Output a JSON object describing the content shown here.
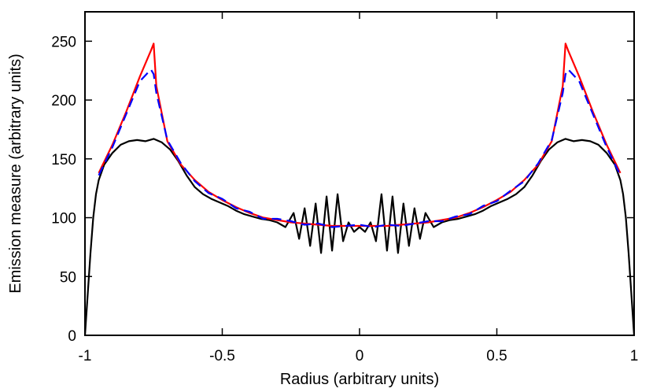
{
  "chart_data": {
    "type": "line",
    "title": "",
    "xlabel": "Radius (arbitrary units)",
    "ylabel": "Emission measure (arbitrary units)",
    "xlim": [
      -1.0,
      1.0
    ],
    "ylim": [
      0,
      275
    ],
    "xticks": [
      -1,
      -0.5,
      0,
      0.5,
      1
    ],
    "xtick_labels": [
      "-1",
      "-0.5",
      "0",
      "0.5",
      "1"
    ],
    "yticks": [
      0,
      50,
      100,
      150,
      200,
      250
    ],
    "ytick_labels": [
      "0",
      "50",
      "100",
      "150",
      "200",
      "250"
    ],
    "grid": false,
    "legend": "none",
    "series": [
      {
        "color": "#ff0000",
        "style": "solid",
        "x": [
          -0.95,
          -0.9,
          -0.85,
          -0.8,
          -0.76,
          -0.75,
          -0.74,
          -0.7,
          -0.65,
          -0.6,
          -0.55,
          -0.5,
          -0.45,
          -0.4,
          -0.35,
          -0.3,
          -0.25,
          -0.2,
          -0.15,
          -0.1,
          -0.05,
          0,
          0.05,
          0.1,
          0.15,
          0.2,
          0.25,
          0.3,
          0.35,
          0.4,
          0.45,
          0.5,
          0.55,
          0.6,
          0.65,
          0.7,
          0.74,
          0.75,
          0.76,
          0.8,
          0.85,
          0.9,
          0.95
        ],
        "y": [
          138,
          162,
          190,
          220,
          242,
          248,
          212,
          165,
          145,
          132,
          122,
          115,
          109,
          104,
          100,
          98,
          96,
          95,
          94,
          93,
          93,
          93,
          93,
          93,
          94,
          95,
          96,
          98,
          100,
          104,
          109,
          115,
          122,
          132,
          145,
          165,
          212,
          248,
          242,
          220,
          190,
          162,
          138
        ]
      },
      {
        "color": "#0000ff",
        "style": "dashed",
        "x": [
          -0.95,
          -0.9,
          -0.85,
          -0.8,
          -0.76,
          -0.75,
          -0.74,
          -0.7,
          -0.65,
          -0.6,
          -0.55,
          -0.5,
          -0.45,
          -0.4,
          -0.35,
          -0.3,
          -0.25,
          -0.2,
          -0.15,
          -0.1,
          -0.05,
          0,
          0.05,
          0.1,
          0.15,
          0.2,
          0.25,
          0.3,
          0.35,
          0.4,
          0.45,
          0.5,
          0.55,
          0.6,
          0.65,
          0.7,
          0.74,
          0.75,
          0.76,
          0.8,
          0.85,
          0.9,
          0.95
        ],
        "y": [
          136,
          160,
          188,
          216,
          226,
          222,
          206,
          166,
          146,
          131,
          121,
          116,
          108,
          105,
          99,
          99,
          97,
          94,
          95,
          92,
          93,
          94,
          92,
          94,
          93,
          95,
          97,
          97,
          101,
          103,
          110,
          114,
          123,
          131,
          146,
          166,
          206,
          222,
          226,
          216,
          188,
          160,
          136
        ]
      },
      {
        "color": "#000000",
        "style": "solid",
        "x": [
          -1.0,
          -0.99,
          -0.98,
          -0.97,
          -0.96,
          -0.95,
          -0.93,
          -0.9,
          -0.87,
          -0.84,
          -0.81,
          -0.78,
          -0.75,
          -0.72,
          -0.69,
          -0.66,
          -0.63,
          -0.6,
          -0.57,
          -0.54,
          -0.51,
          -0.48,
          -0.45,
          -0.42,
          -0.39,
          -0.36,
          -0.33,
          -0.3,
          -0.27,
          -0.24,
          -0.22,
          -0.2,
          -0.18,
          -0.16,
          -0.14,
          -0.12,
          -0.1,
          -0.08,
          -0.06,
          -0.04,
          -0.02,
          0,
          0.02,
          0.04,
          0.06,
          0.08,
          0.1,
          0.12,
          0.14,
          0.16,
          0.18,
          0.2,
          0.22,
          0.24,
          0.27,
          0.3,
          0.33,
          0.36,
          0.39,
          0.42,
          0.45,
          0.48,
          0.51,
          0.54,
          0.57,
          0.6,
          0.63,
          0.66,
          0.69,
          0.72,
          0.75,
          0.78,
          0.81,
          0.84,
          0.87,
          0.9,
          0.93,
          0.95,
          0.96,
          0.97,
          0.98,
          0.99,
          1.0
        ],
        "y": [
          0,
          35,
          70,
          100,
          120,
          132,
          145,
          155,
          162,
          165,
          166,
          165,
          167,
          164,
          158,
          148,
          136,
          126,
          120,
          116,
          113,
          110,
          106,
          103,
          101,
          99,
          98,
          96,
          92,
          104,
          82,
          108,
          76,
          112,
          70,
          118,
          72,
          120,
          80,
          96,
          88,
          92,
          88,
          96,
          80,
          120,
          72,
          118,
          70,
          112,
          76,
          108,
          82,
          104,
          92,
          96,
          98,
          99,
          101,
          103,
          106,
          110,
          113,
          116,
          120,
          126,
          136,
          148,
          158,
          164,
          167,
          165,
          166,
          165,
          162,
          155,
          145,
          132,
          120,
          100,
          70,
          35,
          0
        ]
      }
    ]
  }
}
